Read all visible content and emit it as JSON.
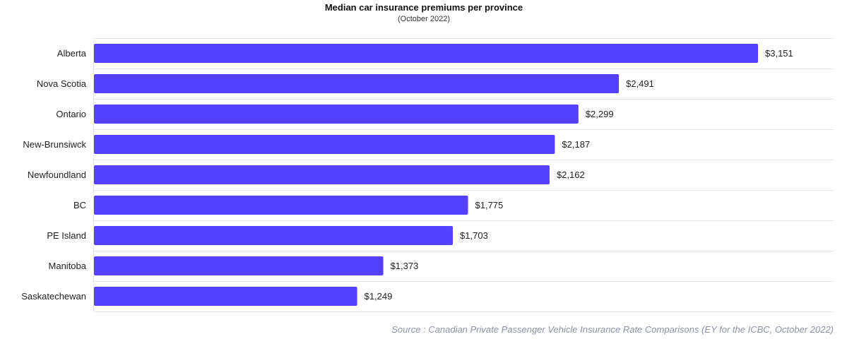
{
  "chart_data": {
    "type": "bar",
    "orientation": "horizontal",
    "title": "Median car insurance premiums per province",
    "subtitle": "(October 2022)",
    "categories": [
      "Alberta",
      "Nova Scotia",
      "Ontario",
      "New-Brunsiwck",
      "Newfoundland",
      "BC",
      "PE Island",
      "Manitoba",
      "Saskatechewan"
    ],
    "values": [
      3151,
      2491,
      2299,
      2187,
      2162,
      1775,
      1703,
      1373,
      1249
    ],
    "value_labels": [
      "$3,151",
      "$2,491",
      "$2,299",
      "$2,187",
      "$2,162",
      "$1,775",
      "$1,703",
      "$1,373",
      "$1,249"
    ],
    "xlim": [
      0,
      3151
    ],
    "grid": true,
    "legend": "none",
    "bar_color": "#5640ff",
    "source": "Source : Canadian Private Passenger Vehicle Insurance Rate Comparisons (EY for the ICBC, October 2022)"
  }
}
